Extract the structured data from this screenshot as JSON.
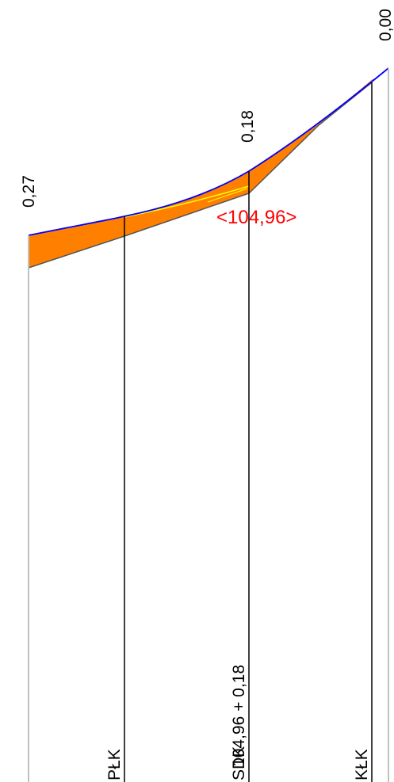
{
  "diagram": {
    "elevation_labels": [
      {
        "id": "left",
        "text": "0,27"
      },
      {
        "id": "mid",
        "text": "0,18"
      },
      {
        "id": "right",
        "text": "0,00"
      }
    ],
    "station_label": "<104,96>",
    "station_label_color": "#ff0000",
    "bottom_labels": {
      "plk": "PŁK",
      "sdk": "SDK",
      "sdk_value": "104,96 + 0,18",
      "klk": "KŁK"
    },
    "colors": {
      "fill": "#ff8000",
      "outer_curve": "#0000ff",
      "inner_curve": "#ffff00",
      "lower_edge": "#555555",
      "ordinate": "#000000",
      "boundary": "#c0c0c0"
    }
  }
}
